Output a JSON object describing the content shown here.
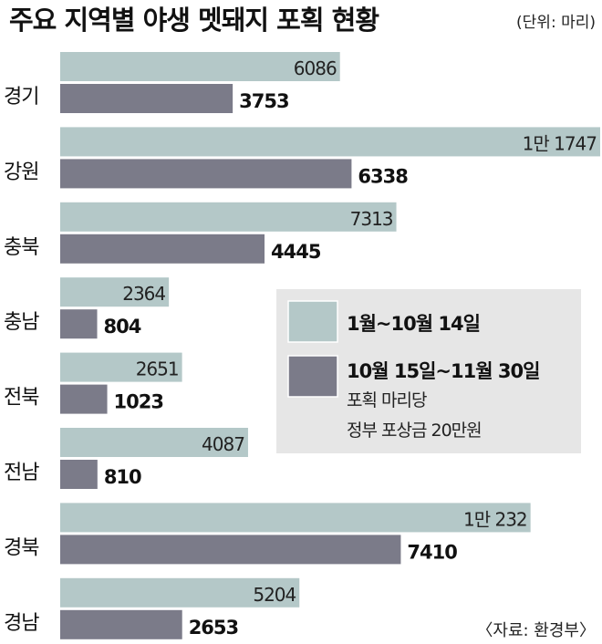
{
  "chart_data": {
    "type": "bar",
    "orientation": "horizontal",
    "title": "주요 지역별 야생 멧돼지 포획 현황",
    "unit": "(단위: 마리)",
    "categories": [
      "경기",
      "강원",
      "충북",
      "충남",
      "전북",
      "전남",
      "경북",
      "경남"
    ],
    "series": [
      {
        "name": "1월~10월 14일",
        "color": "#b4c8c8",
        "values": [
          6086,
          11747,
          7313,
          2364,
          2651,
          4087,
          10232,
          5204
        ],
        "labels": [
          "6086",
          "1만 1747",
          "7313",
          "2364",
          "2651",
          "4087",
          "1만 232",
          "5204"
        ]
      },
      {
        "name": "10월 15일~11월 30일",
        "color": "#7b7b89",
        "values": [
          3753,
          6338,
          4445,
          804,
          1023,
          810,
          7410,
          2653
        ],
        "labels": [
          "3753",
          "6338",
          "4445",
          "804",
          "1023",
          "810",
          "7410",
          "2653"
        ]
      }
    ],
    "legend": {
      "note_line1": "포획 마리당",
      "note_line2": "정부 포상금 20만원",
      "background": "#e6e6e6",
      "placement": "center-right"
    },
    "source": "〈자료: 환경부〉",
    "xlim": [
      0,
      11747
    ]
  }
}
